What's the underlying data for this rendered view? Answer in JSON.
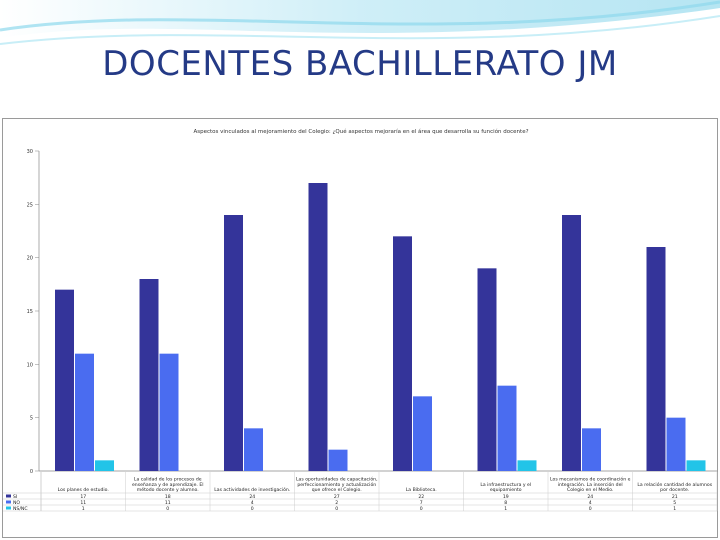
{
  "slide": {
    "title": "DOCENTES BACHILLERATO JM"
  },
  "colors": {
    "si": "#34349a",
    "no": "#4a6cf0",
    "ns_nc": "#22c4e8",
    "banner_light": "#c8eef7",
    "banner_accent": "#8fd9ec"
  },
  "chart_data": {
    "type": "bar",
    "title": "Aspectos vinculados al mejoramiento del Colegio: ¿Qué aspectos mejoraría en el área que desarrolla su función docente?",
    "categories": [
      "Los planes de estudio.",
      "La calidad de los procesos de enseñanza y de aprendizaje. El método docente y alumno.",
      "Las actividades de investigación.",
      "Las oportunidades de capacitación, perfeccionamiento y actualización que ofrece el Colegio.",
      "La Biblioteca.",
      "La infraestructura y el equipamiento",
      "Los mecanismos de coordinación e integración. La inserción del Colegio en el Medio.",
      "La relación cantidad de alumnos por docente."
    ],
    "series": [
      {
        "name": "SI",
        "values": [
          17,
          18,
          24,
          27,
          22,
          19,
          24,
          21
        ]
      },
      {
        "name": "NO",
        "values": [
          11,
          11,
          4,
          2,
          7,
          8,
          4,
          5
        ]
      },
      {
        "name": "NS/NC",
        "values": [
          1,
          0,
          0,
          0,
          0,
          1,
          0,
          1
        ]
      }
    ],
    "ylim": [
      0,
      30
    ],
    "yticks": [
      "0",
      "5",
      "10",
      "15",
      "20",
      "25",
      "30"
    ],
    "legend": "data-table-left",
    "grid": false
  }
}
